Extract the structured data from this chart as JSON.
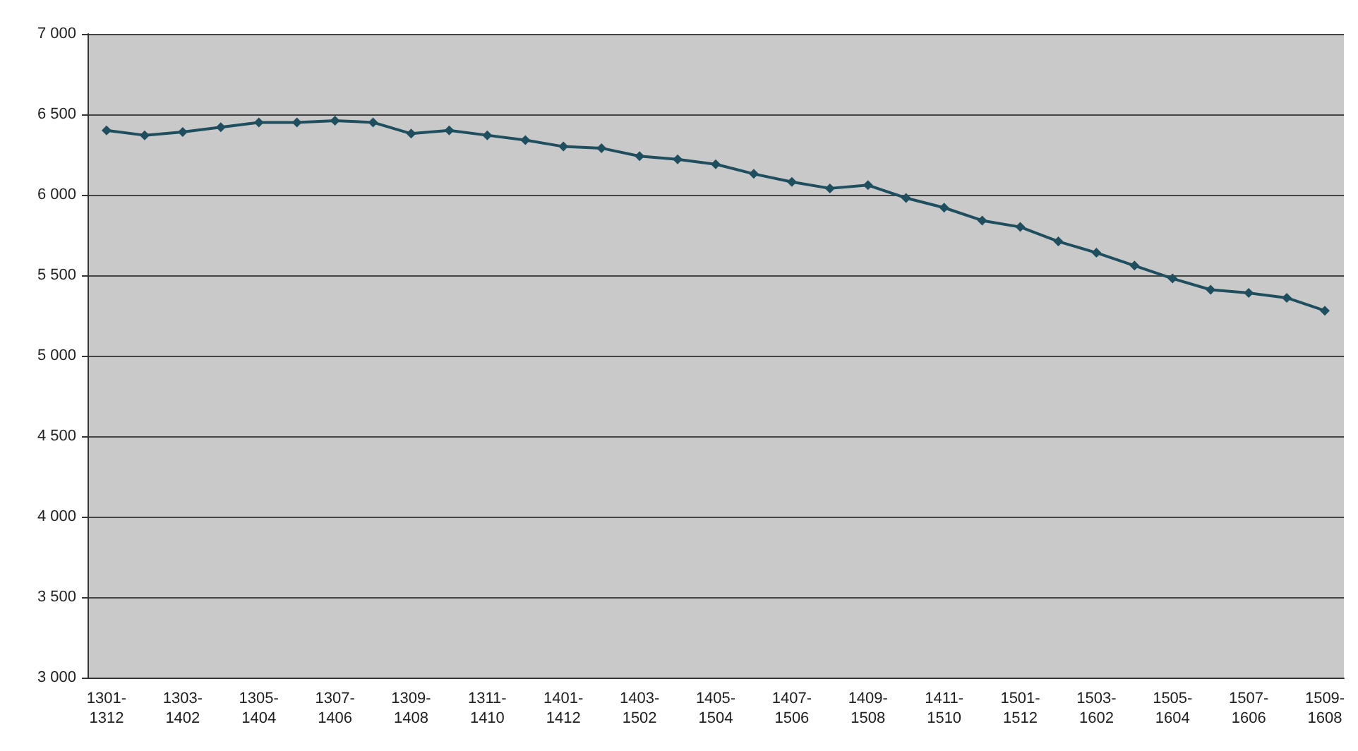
{
  "chart_data": {
    "type": "line",
    "categories": [
      "1301-1312",
      null,
      "1303-1402",
      null,
      "1305-1404",
      null,
      "1307-1406",
      null,
      "1309-1408",
      null,
      "1311-1410",
      null,
      "1401-1412",
      null,
      "1403-1502",
      null,
      "1405-1504",
      null,
      "1407-1506",
      null,
      "1409-1508",
      null,
      "1411-1510",
      null,
      "1501-1512",
      null,
      "1503-1602",
      null,
      "1505-1604",
      null,
      "1507-1606",
      null,
      "1509-1608"
    ],
    "series": [
      {
        "color": "#1f4e5f",
        "values": [
          6400,
          6370,
          6390,
          6420,
          6450,
          6450,
          6460,
          6450,
          6380,
          6400,
          6370,
          6340,
          6300,
          6290,
          6240,
          6220,
          6190,
          6130,
          6080,
          6040,
          6060,
          5980,
          5920,
          5840,
          5800,
          5710,
          5640,
          5560,
          5480,
          5410,
          5390,
          5360,
          5280
        ]
      }
    ],
    "ylim": [
      3000,
      7000
    ],
    "yticks": [
      {
        "value": 3000,
        "label": "3 000"
      },
      {
        "value": 3500,
        "label": "3 500"
      },
      {
        "value": 4000,
        "label": "4 000"
      },
      {
        "value": 4500,
        "label": "4 500"
      },
      {
        "value": 5000,
        "label": "5 000"
      },
      {
        "value": 5500,
        "label": "5 500"
      },
      {
        "value": 6000,
        "label": "6 000"
      },
      {
        "value": 6500,
        "label": "6 500"
      },
      {
        "value": 7000,
        "label": "7 000"
      }
    ],
    "grid": "y",
    "marker": "diamond",
    "line_style": "solid"
  }
}
